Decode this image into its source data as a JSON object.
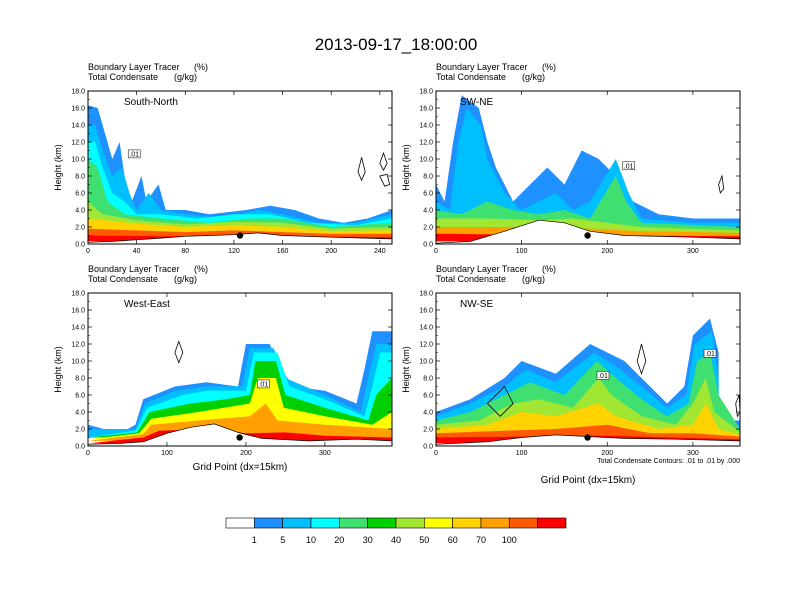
{
  "figure": {
    "title": "2013-09-17_18:00:00",
    "contour_note": "Total Condensate Contours: .01 to .01 by .000",
    "contour_label": ".01"
  },
  "colorbar": {
    "labels": [
      "1",
      "5",
      "10",
      "20",
      "30",
      "40",
      "50",
      "60",
      "70",
      "100"
    ],
    "colors": [
      "#ffffff",
      "#1e90ff",
      "#00bfff",
      "#00ffff",
      "#40e070",
      "#00d000",
      "#a0e632",
      "#ffff00",
      "#ffd200",
      "#ffa000",
      "#ff5a00",
      "#ff0000"
    ]
  },
  "chart_data": [
    {
      "type": "heatmap",
      "panel_label": "South-North",
      "subtitle_line1": "Boundary Layer Tracer",
      "subtitle_unit1": "(%)",
      "subtitle_line2": "Total Condensate",
      "subtitle_unit2": "(g/kg)",
      "ylabel": "Height (km)",
      "xlabel": "",
      "xlim": [
        0,
        250
      ],
      "ylim": [
        0,
        18
      ],
      "xticks": [
        "0",
        "40",
        "80",
        "120",
        "160",
        "200",
        "240"
      ],
      "yticks": [
        "0.0",
        "2.0",
        "4.0",
        "6.0",
        "8.0",
        "10.0",
        "12.0",
        "14.0",
        "16.0",
        "18.0"
      ],
      "marker_x": 125
    },
    {
      "type": "heatmap",
      "panel_label": "SW-NE",
      "subtitle_line1": "Boundary Layer Tracer",
      "subtitle_unit1": "(%)",
      "subtitle_line2": "Total Condensate",
      "subtitle_unit2": "(g/kg)",
      "ylabel": "Height (km)",
      "xlabel": "",
      "xlim": [
        0,
        355
      ],
      "ylim": [
        0,
        18
      ],
      "xticks": [
        "0",
        "100",
        "200",
        "300"
      ],
      "yticks": [
        "0.0",
        "2.0",
        "4.0",
        "6.0",
        "8.0",
        "10.0",
        "12.0",
        "14.0",
        "16.0",
        "18.0"
      ],
      "marker_x": 177
    },
    {
      "type": "heatmap",
      "panel_label": "West-East",
      "subtitle_line1": "Boundary Layer Tracer",
      "subtitle_unit1": "(%)",
      "subtitle_line2": "Total Condensate",
      "subtitle_unit2": "(g/kg)",
      "ylabel": "Height (km)",
      "xlabel": "Grid Point (dx=15km)",
      "xlim": [
        0,
        385
      ],
      "ylim": [
        0,
        18
      ],
      "xticks": [
        "0",
        "100",
        "200",
        "300"
      ],
      "yticks": [
        "0.0",
        "2.0",
        "4.0",
        "6.0",
        "8.0",
        "10.0",
        "12.0",
        "14.0",
        "16.0",
        "18.0"
      ],
      "marker_x": 192
    },
    {
      "type": "heatmap",
      "panel_label": "NW-SE",
      "subtitle_line1": "Boundary Layer Tracer",
      "subtitle_unit1": "(%)",
      "subtitle_line2": "Total Condensate",
      "subtitle_unit2": "(g/kg)",
      "ylabel": "Height (km)",
      "xlabel": "Grid Point (dx=15km)",
      "xlim": [
        0,
        355
      ],
      "ylim": [
        0,
        18
      ],
      "xticks": [
        "0",
        "100",
        "200",
        "300"
      ],
      "yticks": [
        "0.0",
        "2.0",
        "4.0",
        "6.0",
        "8.0",
        "10.0",
        "12.0",
        "14.0",
        "16.0",
        "18.0"
      ],
      "marker_x": 177
    }
  ]
}
